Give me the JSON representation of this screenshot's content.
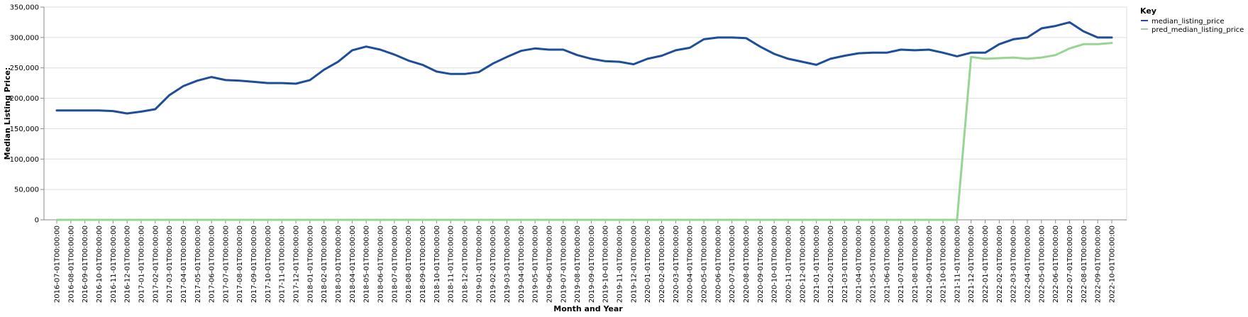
{
  "chart_data": {
    "type": "line",
    "xlabel": "Month and Year",
    "ylabel": "Median Listing Price:",
    "ylim": [
      0,
      350000
    ],
    "y_ticks": [
      "0",
      "50,000",
      "100,000",
      "150,000",
      "200,000",
      "250,000",
      "300,000",
      "350,000"
    ],
    "grid": true,
    "legend": {
      "title": "Key",
      "position": "top-right"
    },
    "x": [
      "2016-07-01T00:00:00",
      "2016-08-01T00:00:00",
      "2016-09-01T00:00:00",
      "2016-10-01T00:00:00",
      "2016-11-01T00:00:00",
      "2016-12-01T00:00:00",
      "2017-01-01T00:00:00",
      "2017-02-01T00:00:00",
      "2017-03-01T00:00:00",
      "2017-04-01T00:00:00",
      "2017-05-01T00:00:00",
      "2017-06-01T00:00:00",
      "2017-07-01T00:00:00",
      "2017-08-01T00:00:00",
      "2017-09-01T00:00:00",
      "2017-10-01T00:00:00",
      "2017-11-01T00:00:00",
      "2017-12-01T00:00:00",
      "2018-01-01T00:00:00",
      "2018-02-01T00:00:00",
      "2018-03-01T00:00:00",
      "2018-04-01T00:00:00",
      "2018-05-01T00:00:00",
      "2018-06-01T00:00:00",
      "2018-07-01T00:00:00",
      "2018-08-01T00:00:00",
      "2018-09-01T00:00:00",
      "2018-10-01T00:00:00",
      "2018-11-01T00:00:00",
      "2018-12-01T00:00:00",
      "2019-01-01T00:00:00",
      "2019-02-01T00:00:00",
      "2019-03-01T00:00:00",
      "2019-04-01T00:00:00",
      "2019-05-01T00:00:00",
      "2019-06-01T00:00:00",
      "2019-07-01T00:00:00",
      "2019-08-01T00:00:00",
      "2019-09-01T00:00:00",
      "2019-10-01T00:00:00",
      "2019-11-01T00:00:00",
      "2019-12-01T00:00:00",
      "2020-01-01T00:00:00",
      "2020-02-01T00:00:00",
      "2020-03-01T00:00:00",
      "2020-04-01T00:00:00",
      "2020-05-01T00:00:00",
      "2020-06-01T00:00:00",
      "2020-07-01T00:00:00",
      "2020-08-01T00:00:00",
      "2020-09-01T00:00:00",
      "2020-10-01T00:00:00",
      "2020-11-01T00:00:00",
      "2020-12-01T00:00:00",
      "2021-01-01T00:00:00",
      "2021-02-01T00:00:00",
      "2021-03-01T00:00:00",
      "2021-04-01T00:00:00",
      "2021-05-01T00:00:00",
      "2021-06-01T00:00:00",
      "2021-07-01T00:00:00",
      "2021-08-01T00:00:00",
      "2021-09-01T00:00:00",
      "2021-10-01T00:00:00",
      "2021-11-01T00:00:00",
      "2021-12-01T00:00:00",
      "2022-01-01T00:00:00",
      "2022-02-01T00:00:00",
      "2022-03-01T00:00:00",
      "2022-04-01T00:00:00",
      "2022-05-01T00:00:00",
      "2022-06-01T00:00:00",
      "2022-07-01T00:00:00",
      "2022-08-01T00:00:00",
      "2022-09-01T00:00:00",
      "2022-10-01T00:00:00"
    ],
    "series": [
      {
        "name": "median_listing_price",
        "color": "#1f4e99",
        "values": [
          180000,
          180000,
          180000,
          180000,
          179000,
          175000,
          178000,
          182000,
          205000,
          220000,
          229000,
          235000,
          230000,
          229000,
          227000,
          225000,
          225000,
          224000,
          230000,
          247000,
          260000,
          279000,
          285000,
          280000,
          272000,
          262000,
          255000,
          244000,
          240000,
          240000,
          243000,
          257000,
          268000,
          278000,
          282000,
          280000,
          280000,
          271000,
          265000,
          261000,
          260000,
          256000,
          265000,
          270000,
          279000,
          283000,
          297000,
          300000,
          300000,
          299000,
          285000,
          273000,
          265000,
          260000,
          255000,
          265000,
          270000,
          274000,
          275000,
          275000,
          280000,
          279000,
          280000,
          275000,
          269000,
          275000,
          275000,
          289000,
          297000,
          300000,
          315000,
          319000,
          325000,
          310000,
          300000,
          300000
        ]
      },
      {
        "name": "pred_median_listing_price",
        "color": "#98d594",
        "values": [
          0,
          0,
          0,
          0,
          0,
          0,
          0,
          0,
          0,
          0,
          0,
          0,
          0,
          0,
          0,
          0,
          0,
          0,
          0,
          0,
          0,
          0,
          0,
          0,
          0,
          0,
          0,
          0,
          0,
          0,
          0,
          0,
          0,
          0,
          0,
          0,
          0,
          0,
          0,
          0,
          0,
          0,
          0,
          0,
          0,
          0,
          0,
          0,
          0,
          0,
          0,
          0,
          0,
          0,
          0,
          0,
          0,
          0,
          0,
          0,
          0,
          0,
          0,
          0,
          0,
          268000,
          265000,
          266000,
          267000,
          265000,
          267000,
          271000,
          282000,
          289000,
          289000,
          291000
        ]
      }
    ]
  }
}
